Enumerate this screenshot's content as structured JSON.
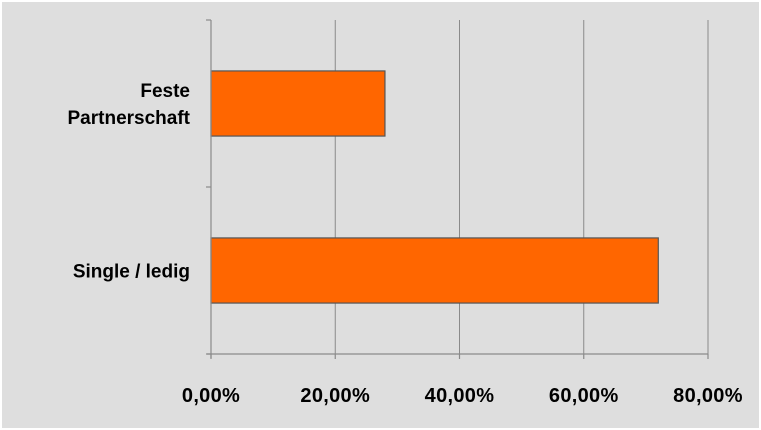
{
  "chart_data": {
    "type": "bar",
    "orientation": "horizontal",
    "categories": [
      [
        "Feste",
        "Partnerschaft"
      ],
      [
        "Single / ledig"
      ]
    ],
    "values": [
      28,
      72
    ],
    "xlim": [
      0,
      80
    ],
    "xticks": [
      "0,00%",
      "20,00%",
      "40,00%",
      "60,00%",
      "80,00%"
    ],
    "tick_values": [
      0,
      20,
      40,
      60,
      80
    ],
    "grid": true,
    "legend": "none",
    "colors": {
      "bar": "#ff6600",
      "bar_edge": "#555555",
      "plot_background": "#dedede"
    }
  }
}
